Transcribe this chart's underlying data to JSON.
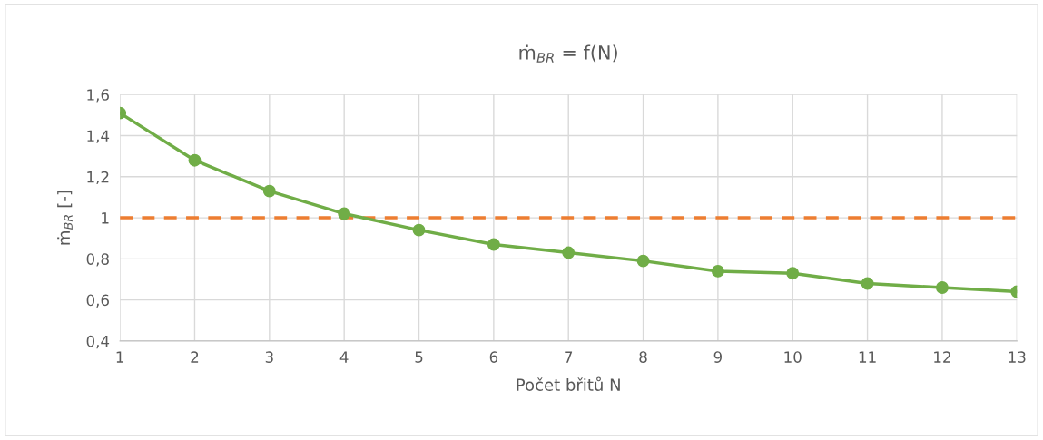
{
  "chart_data": {
    "type": "line",
    "title": "ṁ$_{BR}$ = f(N)",
    "xlabel": "Počet břitů N",
    "ylabel": "ṁ$_{BR}$ [-]",
    "x": [
      1,
      2,
      3,
      4,
      5,
      6,
      7,
      8,
      9,
      10,
      11,
      12,
      13
    ],
    "series": [
      {
        "color": "#70ad47",
        "values": [
          1.51,
          1.28,
          1.13,
          1.02,
          0.94,
          0.87,
          0.83,
          0.79,
          0.74,
          0.73,
          0.68,
          0.66,
          0.64
        ]
      }
    ],
    "xlim": [
      1,
      13
    ],
    "xticks": [
      1,
      2,
      3,
      4,
      5,
      6,
      7,
      8,
      9,
      10,
      11,
      12,
      13
    ],
    "ylim": [
      0.4,
      1.6
    ],
    "yticks": [
      {
        "value": 0.4,
        "label": "0,4"
      },
      {
        "value": 0.6,
        "label": "0,6"
      },
      {
        "value": 0.8,
        "label": "0,8"
      },
      {
        "value": 1,
        "label": "1"
      },
      {
        "value": 1.2,
        "label": "1,2"
      },
      {
        "value": 1.4,
        "label": "1,4"
      },
      {
        "value": 1.6,
        "label": "1,6"
      }
    ],
    "ref_lines": [
      {
        "axis": "y",
        "value": 1,
        "color": "#ed7d31",
        "line_style": "dashed"
      }
    ],
    "grid": true,
    "marker": "circle",
    "line_style": "solid",
    "legend": false
  }
}
